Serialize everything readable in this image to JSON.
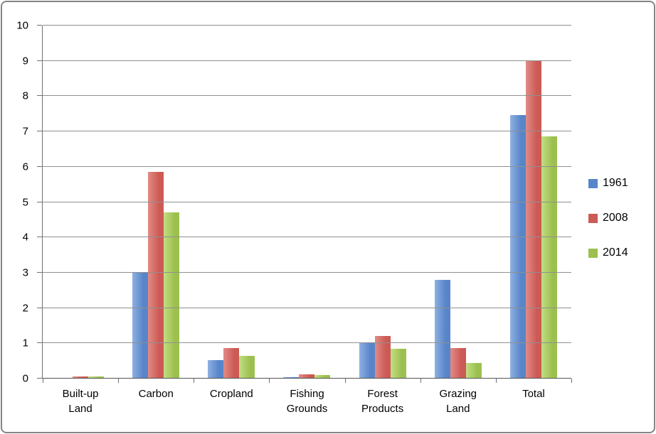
{
  "chart_data": {
    "type": "bar",
    "title": "",
    "xlabel": "",
    "ylabel": "",
    "categories": [
      "Built-up\nLand",
      "Carbon",
      "Cropland",
      "Fishing\nGrounds",
      "Forest\nProducts",
      "Grazing\nLand",
      "Total"
    ],
    "series": [
      {
        "name": "1961",
        "color": "#5885C9",
        "color_light": "#8FB0E2",
        "values": [
          0.03,
          3.0,
          0.52,
          0.05,
          1.02,
          2.8,
          7.47
        ]
      },
      {
        "name": "2008",
        "color": "#CC5A55",
        "color_light": "#E28B86",
        "values": [
          0.06,
          5.85,
          0.87,
          0.12,
          1.2,
          0.87,
          9.0
        ]
      },
      {
        "name": "2014",
        "color": "#9CC04F",
        "color_light": "#C3DE84",
        "values": [
          0.06,
          4.7,
          0.65,
          0.1,
          0.85,
          0.45,
          6.87
        ]
      }
    ],
    "ylim": [
      0,
      10
    ],
    "yticks": [
      0,
      1,
      2,
      3,
      4,
      5,
      6,
      7,
      8,
      9,
      10
    ],
    "grid": true,
    "legend_position": "right",
    "grid_color": "#909090",
    "axis_color": "#707070",
    "border_color": "#848484"
  }
}
